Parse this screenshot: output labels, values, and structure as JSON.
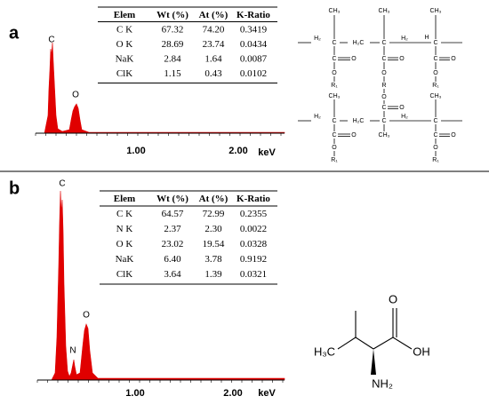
{
  "panels": [
    {
      "label": "a",
      "table": {
        "header": [
          "Elem",
          "Wt (%)",
          "At (%)",
          "K-Ratio"
        ],
        "rows": [
          [
            "C K",
            "67.32",
            "74.20",
            "0.3419"
          ],
          [
            "O K",
            "28.69",
            "23.74",
            "0.0434"
          ],
          [
            "NaK",
            "2.84",
            "1.64",
            "0.0087"
          ],
          [
            "ClK",
            "1.15",
            "0.43",
            "0.0102"
          ]
        ]
      },
      "spectrum": {
        "peak_labels": [
          "C",
          "O"
        ],
        "axis_labels": [
          "1.00",
          "2.00",
          "keV"
        ]
      },
      "structure": {
        "labels": [
          "CH₃",
          "CH₃",
          "CH₃",
          "H₂",
          "C",
          "H₂C",
          "C",
          "H₂",
          "H",
          "C",
          "C",
          "O",
          "C",
          "O",
          "C",
          "O",
          "O",
          "O",
          "O",
          "R₁",
          "R",
          "R₁",
          "O",
          "C",
          "O",
          "CH₃",
          "CH₃",
          "H₂",
          "C",
          "H₂C",
          "C",
          "H₂",
          "C",
          "C",
          "O",
          "CH₃",
          "C",
          "O",
          "O",
          "O",
          "R₁",
          "R₁"
        ]
      }
    },
    {
      "label": "b",
      "table": {
        "header": [
          "Elem",
          "Wt (%)",
          "At (%)",
          "K-Ratio"
        ],
        "rows": [
          [
            "C K",
            "64.57",
            "72.99",
            "0.2355"
          ],
          [
            "N K",
            "2.37",
            "2.30",
            "0.0022"
          ],
          [
            "O K",
            "23.02",
            "19.54",
            "0.0328"
          ],
          [
            "NaK",
            "6.40",
            "3.78",
            "0.9192"
          ],
          [
            "ClK",
            "3.64",
            "1.39",
            "0.0321"
          ]
        ]
      },
      "spectrum": {
        "peak_labels": [
          "C",
          "N",
          "O"
        ],
        "axis_labels": [
          "1.00",
          "2.00",
          "keV"
        ]
      },
      "structure": {
        "labels": [
          "H₃C",
          "O",
          "OH",
          "NH₂"
        ]
      }
    }
  ]
}
